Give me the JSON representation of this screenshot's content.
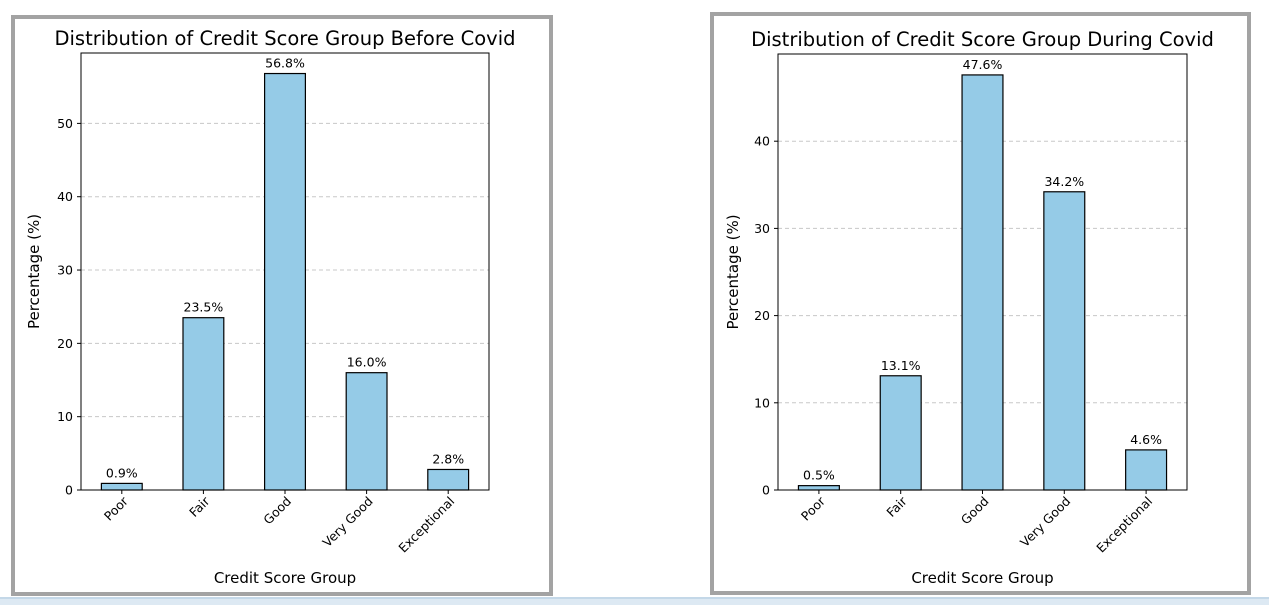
{
  "colors": {
    "bar": "#95cbe7",
    "bar_edge": "#000000",
    "grid": "#c8c8c8",
    "frame": "#a3a3a3"
  },
  "chart_data": [
    {
      "type": "bar",
      "title": "Distribution of Credit Score Group Before Covid",
      "xlabel": "Credit Score Group",
      "ylabel": "Percentage (%)",
      "categories": [
        "Poor",
        "Fair",
        "Good",
        "Very Good",
        "Exceptional"
      ],
      "values": [
        0.9,
        23.5,
        56.8,
        16.0,
        2.8
      ],
      "data_labels": [
        "0.9%",
        "23.5%",
        "56.8%",
        "16.0%",
        "2.8%"
      ],
      "yticks": [
        0,
        10,
        20,
        30,
        40,
        50
      ],
      "ylim": [
        0,
        59.6
      ],
      "grid": "y-dashed",
      "legend": "none"
    },
    {
      "type": "bar",
      "title": "Distribution of Credit Score Group During Covid",
      "xlabel": "Credit Score Group",
      "ylabel": "Percentage (%)",
      "categories": [
        "Poor",
        "Fair",
        "Good",
        "Very Good",
        "Exceptional"
      ],
      "values": [
        0.5,
        13.1,
        47.6,
        34.2,
        4.6
      ],
      "data_labels": [
        "0.5%",
        "13.1%",
        "47.6%",
        "34.2%",
        "4.6%"
      ],
      "yticks": [
        0,
        10,
        20,
        30,
        40
      ],
      "ylim": [
        0,
        50.0
      ],
      "grid": "y-dashed",
      "legend": "none"
    }
  ]
}
